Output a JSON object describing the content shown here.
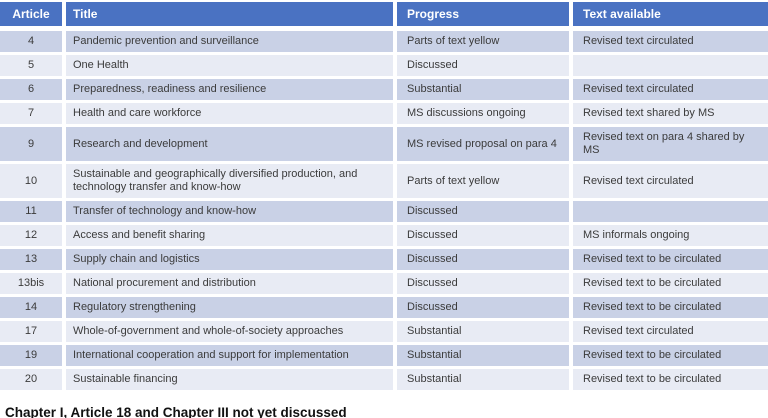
{
  "table": {
    "columns": [
      {
        "label": "Article"
      },
      {
        "label": "Title"
      },
      {
        "label": "Progress"
      },
      {
        "label": "Text available"
      }
    ],
    "rows": [
      {
        "article": "4",
        "title": "Pandemic prevention and surveillance",
        "progress": "Parts of text yellow",
        "text_available": "Revised text circulated"
      },
      {
        "article": "5",
        "title": "One Health",
        "progress": "Discussed",
        "text_available": ""
      },
      {
        "article": "6",
        "title": "Preparedness, readiness and resilience",
        "progress": "Substantial",
        "text_available": "Revised text circulated"
      },
      {
        "article": "7",
        "title": "Health and care workforce",
        "progress": "MS discussions ongoing",
        "text_available": "Revised text shared by MS"
      },
      {
        "article": "9",
        "title": "Research and development",
        "progress": "MS revised proposal on para 4",
        "text_available": "Revised text on para 4 shared by MS"
      },
      {
        "article": "10",
        "title": "Sustainable and geographically diversified production, and technology transfer and know-how",
        "progress": "Parts of text yellow",
        "text_available": "Revised text circulated"
      },
      {
        "article": "11",
        "title": "Transfer of technology and know-how",
        "progress": "Discussed",
        "text_available": ""
      },
      {
        "article": "12",
        "title": "Access and benefit sharing",
        "progress": "Discussed",
        "text_available": "MS informals ongoing"
      },
      {
        "article": "13",
        "title": "Supply chain and logistics",
        "progress": "Discussed",
        "text_available": "Revised text to be circulated"
      },
      {
        "article": "13bis",
        "title": "National procurement and distribution",
        "progress": "Discussed",
        "text_available": "Revised text to be circulated"
      },
      {
        "article": "14",
        "title": "Regulatory strengthening",
        "progress": "Discussed",
        "text_available": "Revised text to be circulated"
      },
      {
        "article": "17",
        "title": "Whole-of-government and whole-of-society approaches",
        "progress": "Substantial",
        "text_available": "Revised text circulated"
      },
      {
        "article": "19",
        "title": "International cooperation and support for implementation",
        "progress": "Substantial",
        "text_available": "Revised text to be circulated"
      },
      {
        "article": "20",
        "title": "Sustainable financing",
        "progress": "Substantial",
        "text_available": "Revised text to be circulated"
      }
    ]
  },
  "footer": {
    "note": "Chapter I, Article 18 and Chapter III not yet discussed"
  },
  "colors": {
    "header_bg": "#4A72C2",
    "header_text": "#FFFFFF",
    "band_dark": "#C9D1E6",
    "band_light": "#E8EBF4",
    "body_text": "#3B3B3B",
    "footer_text": "#111111"
  }
}
